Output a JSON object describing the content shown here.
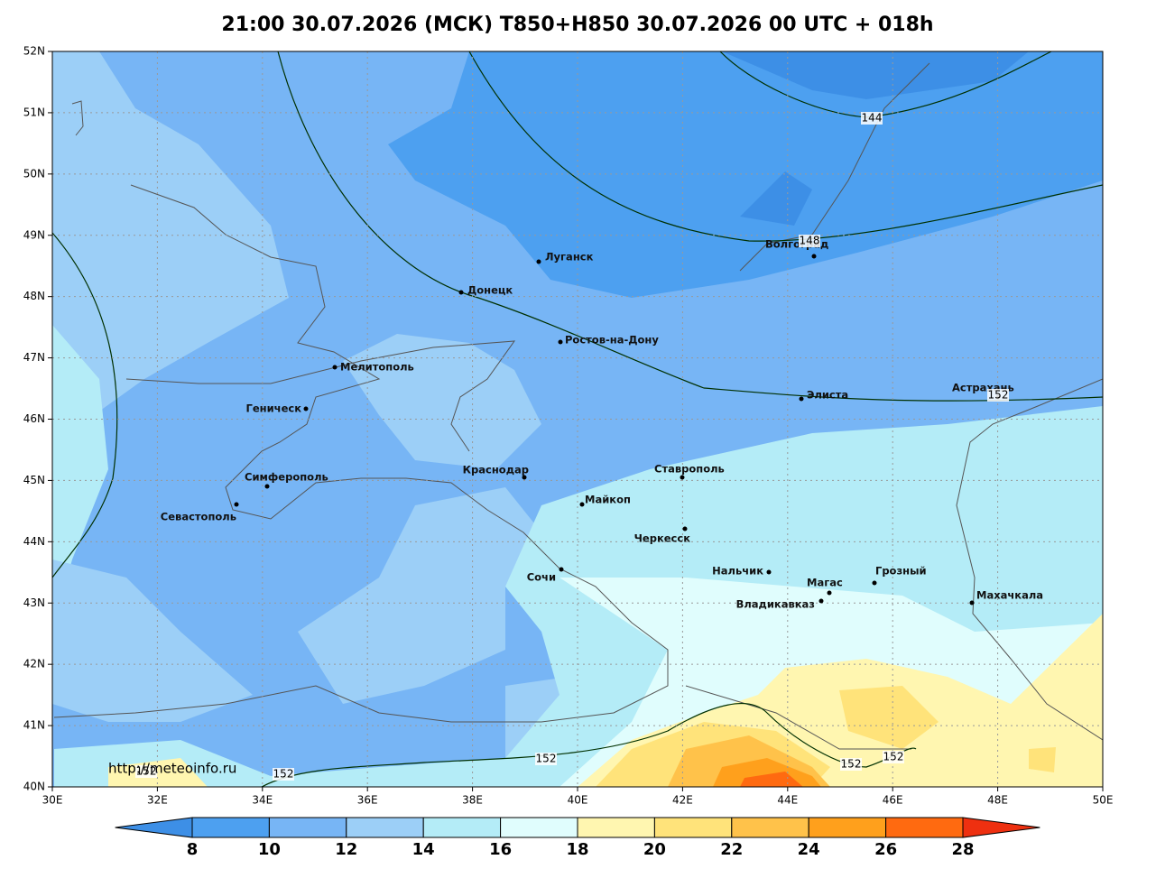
{
  "title": "21:00 30.07.2026 (МСК) T850+H850 30.07.2026 00 UTC + 018h",
  "url": "http://meteoinfo.ru",
  "lat_labels": [
    "52N",
    "51N",
    "50N",
    "49N",
    "48N",
    "47N",
    "46N",
    "45N",
    "44N",
    "43N",
    "42N",
    "41N",
    "40N"
  ],
  "lon_labels": [
    "30E",
    "32E",
    "34E",
    "36E",
    "38E",
    "40E",
    "42E",
    "44E",
    "46E",
    "48E",
    "50E"
  ],
  "cities": [
    "Луганск",
    "Донецк",
    "Волгоград",
    "Ростов-на-Дону",
    "Мелитополь",
    "Геническ",
    "Элиста",
    "Астрахань",
    "Симферополь",
    "Севастополь",
    "Краснодар",
    "Майкоп",
    "Ставрополь",
    "Черкесск",
    "Сочи",
    "Нальчик",
    "Магас",
    "Грозный",
    "Владикавказ",
    "Махачкала"
  ],
  "contour_labels": [
    "144",
    "148",
    "152",
    "152",
    "152",
    "152",
    "152",
    "152"
  ],
  "colorbar_labels": [
    8,
    10,
    12,
    14,
    16,
    18,
    20,
    22,
    24,
    26,
    28
  ]
}
